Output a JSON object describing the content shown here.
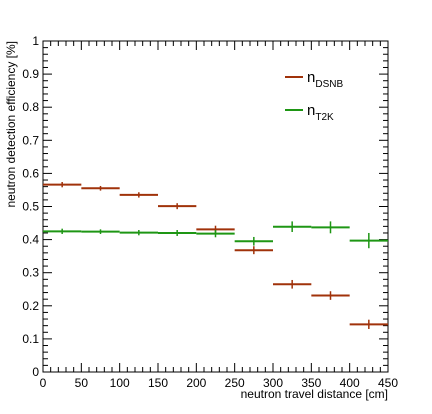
{
  "chart_data": {
    "type": "scatter",
    "xlabel": "neutron travel distance [cm]",
    "ylabel": "neutron detection efficiency [%]",
    "xlim": [
      0,
      450
    ],
    "ylim": [
      0,
      1
    ],
    "x_ticks": [
      0,
      50,
      100,
      150,
      200,
      250,
      300,
      350,
      400,
      450
    ],
    "y_ticks": [
      0,
      0.1,
      0.2,
      0.3,
      0.4,
      0.5,
      0.6,
      0.7,
      0.8,
      0.9,
      1
    ],
    "x_tick_labels": [
      "0",
      "50",
      "100",
      "150",
      "200",
      "250",
      "300",
      "350",
      "400",
      "450"
    ],
    "y_tick_labels": [
      "0",
      "0.1",
      "0.2",
      "0.3",
      "0.4",
      "0.5",
      "0.6",
      "0.7",
      "0.8",
      "0.9",
      "1"
    ],
    "grid": false,
    "legend_position": "top-right",
    "series": [
      {
        "name_main": "n",
        "name_sub": "DSNB",
        "color": "#a0320a",
        "x": [
          25,
          75,
          125,
          175,
          225,
          275,
          325,
          375,
          425
        ],
        "x_halfwidth": 25,
        "y": [
          0.566,
          0.555,
          0.535,
          0.501,
          0.431,
          0.368,
          0.265,
          0.231,
          0.144
        ],
        "y_err": [
          0.005,
          0.004,
          0.005,
          0.006,
          0.008,
          0.009,
          0.01,
          0.01,
          0.011
        ]
      },
      {
        "name_main": "n",
        "name_sub": "T2K",
        "color": "#1e9614",
        "x": [
          25,
          75,
          125,
          175,
          225,
          275,
          325,
          375,
          425
        ],
        "x_halfwidth": 25,
        "y": [
          0.425,
          0.424,
          0.421,
          0.42,
          0.418,
          0.395,
          0.439,
          0.437,
          0.397
        ],
        "y_err": [
          0.005,
          0.004,
          0.005,
          0.006,
          0.008,
          0.01,
          0.013,
          0.015,
          0.02
        ]
      }
    ]
  }
}
